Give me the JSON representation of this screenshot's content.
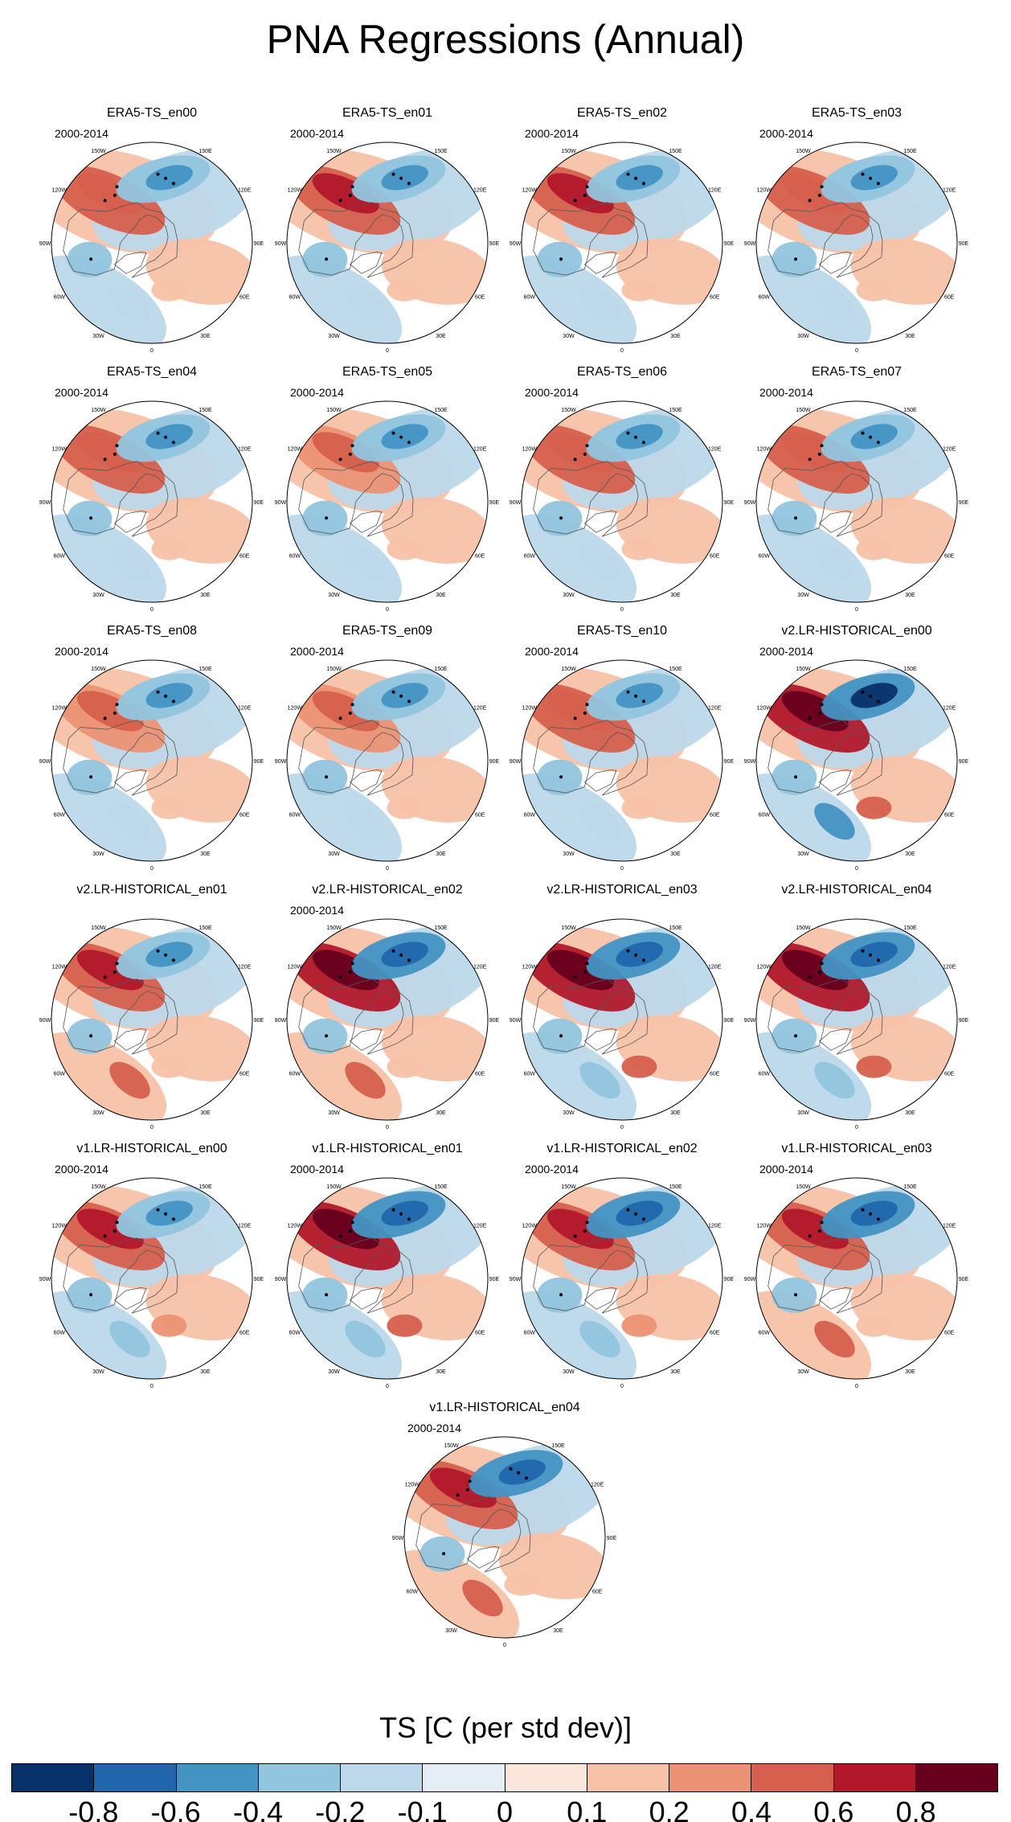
{
  "title": "PNA Regressions (Annual)",
  "colorbar": {
    "label": "TS [C (per std dev)]",
    "colors": [
      "#08306b",
      "#2166ac",
      "#4393c3",
      "#92c5de",
      "#bcd8ea",
      "#e6eef5",
      "#fbe6dc",
      "#f7c2a8",
      "#ec9274",
      "#d6604d",
      "#b2182b",
      "#67001f"
    ],
    "tick_labels": [
      "-0.8",
      "-0.6",
      "-0.4",
      "-0.2",
      "-0.1",
      "0",
      "0.1",
      "0.2",
      "0.4",
      "0.6",
      "0.8"
    ]
  },
  "chart_data": {
    "type": "heatmap",
    "projection": "polar stereographic, Northern Hemisphere",
    "period": "2000-2014",
    "variable": "TS",
    "units": "C (per std dev)",
    "longitude_labels": [
      "180",
      "150E",
      "120E",
      "90E",
      "60E",
      "30E",
      "0",
      "30W",
      "60W",
      "90W",
      "120W",
      "150W"
    ],
    "panels": [
      {
        "name": "ERA5-TS_en00",
        "period": "2000-2014",
        "pattern": {
          "ne_pacific": "warm",
          "n_pacific": "cold",
          "e_us": "cold",
          "atlantic": "weak"
        },
        "amp": 0.55
      },
      {
        "name": "ERA5-TS_en01",
        "period": "2000-2014",
        "pattern": {
          "ne_pacific": "warm",
          "n_pacific": "cold",
          "e_us": "cold",
          "atlantic": "weak"
        },
        "amp": 0.6
      },
      {
        "name": "ERA5-TS_en02",
        "period": "2000-2014",
        "pattern": {
          "ne_pacific": "warm",
          "n_pacific": "cold",
          "e_us": "cold",
          "atlantic": "weak"
        },
        "amp": 0.6
      },
      {
        "name": "ERA5-TS_en03",
        "period": "2000-2014",
        "pattern": {
          "ne_pacific": "warm",
          "n_pacific": "cold",
          "e_us": "cold",
          "atlantic": "weak"
        },
        "amp": 0.55
      },
      {
        "name": "ERA5-TS_en04",
        "period": "2000-2014",
        "pattern": {
          "ne_pacific": "warm",
          "n_pacific": "cold",
          "e_us": "cold",
          "atlantic": "weak"
        },
        "amp": 0.55
      },
      {
        "name": "ERA5-TS_en05",
        "period": "2000-2014",
        "pattern": {
          "ne_pacific": "warm",
          "n_pacific": "cold",
          "e_us": "cold",
          "atlantic": "weak"
        },
        "amp": 0.5
      },
      {
        "name": "ERA5-TS_en06",
        "period": "2000-2014",
        "pattern": {
          "ne_pacific": "warm",
          "n_pacific": "cold",
          "e_us": "cold",
          "atlantic": "weak"
        },
        "amp": 0.55
      },
      {
        "name": "ERA5-TS_en07",
        "period": "2000-2014",
        "pattern": {
          "ne_pacific": "warm",
          "n_pacific": "cold",
          "e_us": "cold",
          "atlantic": "weak"
        },
        "amp": 0.55
      },
      {
        "name": "ERA5-TS_en08",
        "period": "2000-2014",
        "pattern": {
          "ne_pacific": "warm",
          "n_pacific": "cold",
          "e_us": "cold",
          "atlantic": "weak"
        },
        "amp": 0.5
      },
      {
        "name": "ERA5-TS_en09",
        "period": "2000-2014",
        "pattern": {
          "ne_pacific": "warm",
          "n_pacific": "cold",
          "e_us": "cold",
          "atlantic": "weak"
        },
        "amp": 0.5
      },
      {
        "name": "ERA5-TS_en10",
        "period": "2000-2014",
        "pattern": {
          "ne_pacific": "warm",
          "n_pacific": "cold",
          "e_us": "cold",
          "atlantic": "weak"
        },
        "amp": 0.55
      },
      {
        "name": "v2.LR-HISTORICAL_en00",
        "period": "2000-2014",
        "pattern": {
          "ne_pacific": "warm",
          "n_pacific": "cold",
          "e_us": "cold",
          "atlantic": "mixed"
        },
        "amp": 0.85
      },
      {
        "name": "v2.LR-HISTORICAL_en01",
        "period": "",
        "pattern": {
          "ne_pacific": "warm",
          "n_pacific": "cold",
          "e_us": "cold",
          "atlantic": "warm"
        },
        "amp": 0.6
      },
      {
        "name": "v2.LR-HISTORICAL_en02",
        "period": "2000-2014",
        "pattern": {
          "ne_pacific": "warm",
          "n_pacific": "cold",
          "e_us": "cold",
          "atlantic": "warm"
        },
        "amp": 0.8
      },
      {
        "name": "v2.LR-HISTORICAL_en03",
        "period": "",
        "pattern": {
          "ne_pacific": "warm",
          "n_pacific": "cold",
          "e_us": "cold",
          "atlantic": "mixed"
        },
        "amp": 0.8
      },
      {
        "name": "v2.LR-HISTORICAL_en04",
        "period": "",
        "pattern": {
          "ne_pacific": "warm",
          "n_pacific": "cold",
          "e_us": "cold",
          "atlantic": "mixed"
        },
        "amp": 0.8
      },
      {
        "name": "v1.LR-HISTORICAL_en00",
        "period": "2000-2014",
        "pattern": {
          "ne_pacific": "warm",
          "n_pacific": "cold",
          "e_us": "cold",
          "atlantic": "mixed"
        },
        "amp": 0.6
      },
      {
        "name": "v1.LR-HISTORICAL_en01",
        "period": "2000-2014",
        "pattern": {
          "ne_pacific": "warm",
          "n_pacific": "cold",
          "e_us": "cold",
          "atlantic": "mixed"
        },
        "amp": 0.8
      },
      {
        "name": "v1.LR-HISTORICAL_en02",
        "period": "2000-2014",
        "pattern": {
          "ne_pacific": "warm",
          "n_pacific": "cold",
          "e_us": "cold",
          "atlantic": "mixed"
        },
        "amp": 0.75
      },
      {
        "name": "v1.LR-HISTORICAL_en03",
        "period": "2000-2014",
        "pattern": {
          "ne_pacific": "warm",
          "n_pacific": "cold",
          "e_us": "cold",
          "atlantic": "warm"
        },
        "amp": 0.75
      },
      {
        "name": "v1.LR-HISTORICAL_en04",
        "period": "2000-2014",
        "pattern": {
          "ne_pacific": "warm",
          "n_pacific": "cold",
          "e_us": "cold",
          "atlantic": "warm"
        },
        "amp": 0.75
      }
    ]
  }
}
